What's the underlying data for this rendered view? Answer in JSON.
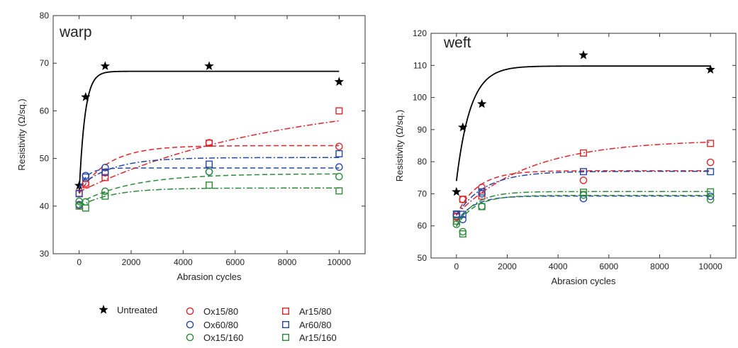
{
  "chart_data": [
    {
      "type": "scatter",
      "title": "warp",
      "xlabel": "Abrasion cycles",
      "ylabel": "Resistivity (Ω/sq.)",
      "xlim": [
        -1000,
        11000
      ],
      "ylim": [
        30,
        80
      ],
      "xticks": [
        0,
        2000,
        4000,
        6000,
        8000,
        10000
      ],
      "yticks": [
        30,
        40,
        50,
        60,
        70,
        80
      ],
      "series": [
        {
          "name": "Untreated",
          "color": "#000000",
          "marker": "star",
          "line": "solid",
          "x": [
            0,
            250,
            1000,
            5000,
            10000
          ],
          "y": [
            44.3,
            62.9,
            69.4,
            69.4,
            66.1
          ],
          "fit": {
            "a": 42.8,
            "b": 68.3,
            "k": 0.0045
          }
        },
        {
          "name": "Ox15/80",
          "color": "#e0262b",
          "marker": "circle",
          "line": "dashed",
          "x": [
            0,
            250,
            1000,
            5000,
            10000
          ],
          "y": [
            40.2,
            44.8,
            47.0,
            53.3,
            52.5
          ],
          "fit": {
            "a": 42.6,
            "b": 52.7,
            "k": 0.0009
          }
        },
        {
          "name": "Ox60/80",
          "color": "#2448a8",
          "marker": "circle",
          "line": "dashed",
          "x": [
            0,
            250,
            1000,
            5000,
            10000
          ],
          "y": [
            40.3,
            46.4,
            48.1,
            47.2,
            48.2
          ],
          "fit": {
            "a": 43.8,
            "b": 48.0,
            "k": 0.003
          }
        },
        {
          "name": "Ox15/160",
          "color": "#2d8a3a",
          "marker": "circle",
          "line": "dashed",
          "x": [
            0,
            250,
            1000,
            5000,
            10000
          ],
          "y": [
            41.0,
            40.9,
            43.1,
            47.2,
            46.2
          ],
          "fit": {
            "a": 40.6,
            "b": 46.8,
            "k": 0.0005
          }
        },
        {
          "name": "Ar15/80",
          "color": "#e0262b",
          "marker": "square",
          "line": "dashdot",
          "x": [
            0,
            250,
            1000,
            5000,
            10000
          ],
          "y": [
            42.7,
            44.5,
            46.0,
            53.2,
            60.0
          ],
          "fit": {
            "a": 43.0,
            "b": 63.5,
            "k": 0.00013
          }
        },
        {
          "name": "Ar60/80",
          "color": "#2448a8",
          "marker": "square",
          "line": "dashdot",
          "x": [
            0,
            250,
            1000,
            5000,
            10000
          ],
          "y": [
            42.6,
            46.1,
            47.1,
            48.8,
            51.0
          ],
          "fit": {
            "a": 44.0,
            "b": 50.2,
            "k": 0.0008
          }
        },
        {
          "name": "Ar15/160",
          "color": "#2d8a3a",
          "marker": "square",
          "line": "dashdot",
          "x": [
            0,
            250,
            1000,
            5000,
            10000
          ],
          "y": [
            40.0,
            39.6,
            42.1,
            44.4,
            43.2
          ],
          "fit": {
            "a": 39.9,
            "b": 43.8,
            "k": 0.0008
          }
        }
      ]
    },
    {
      "type": "scatter",
      "title": "weft",
      "xlabel": "Abrasion cycles",
      "ylabel": "Resistivity (Ω/sq.)",
      "xlim": [
        -1000,
        11000
      ],
      "ylim": [
        50,
        120
      ],
      "xticks": [
        0,
        2000,
        4000,
        6000,
        8000,
        10000
      ],
      "yticks": [
        50,
        60,
        70,
        80,
        90,
        100,
        110,
        120
      ],
      "series": [
        {
          "name": "Untreated",
          "color": "#000000",
          "marker": "star",
          "line": "solid",
          "x": [
            0,
            250,
            1000,
            5000,
            10000
          ],
          "y": [
            70.6,
            90.7,
            98.0,
            113.2,
            108.7
          ],
          "fit": {
            "a": 74.0,
            "b": 109.8,
            "k": 0.0018
          }
        },
        {
          "name": "Ox15/80",
          "color": "#e0262b",
          "marker": "circle",
          "line": "dashed",
          "x": [
            0,
            250,
            1000,
            5000,
            10000
          ],
          "y": [
            63.0,
            68.2,
            72.0,
            74.2,
            79.8
          ],
          "fit": {
            "a": 63.3,
            "b": 77.2,
            "k": 0.0012
          }
        },
        {
          "name": "Ox60/80",
          "color": "#2448a8",
          "marker": "circle",
          "line": "dashed",
          "x": [
            0,
            250,
            1000,
            5000,
            10000
          ],
          "y": [
            63.5,
            62.0,
            70.0,
            68.5,
            69.2
          ],
          "fit": {
            "a": 61.2,
            "b": 69.3,
            "k": 0.0015
          }
        },
        {
          "name": "Ox15/160",
          "color": "#2d8a3a",
          "marker": "circle",
          "line": "dashed",
          "x": [
            0,
            250,
            1000,
            5000,
            10000
          ],
          "y": [
            60.5,
            58.2,
            66.1,
            69.6,
            68.2
          ],
          "fit": {
            "a": 59.8,
            "b": 69.5,
            "k": 0.0014
          }
        },
        {
          "name": "Ar15/80",
          "color": "#e0262b",
          "marker": "square",
          "line": "dashdot",
          "x": [
            0,
            250,
            1000,
            5000,
            10000
          ],
          "y": [
            62.8,
            68.3,
            69.3,
            82.7,
            85.7
          ],
          "fit": {
            "a": 63.5,
            "b": 86.8,
            "k": 0.00035
          }
        },
        {
          "name": "Ar60/80",
          "color": "#2448a8",
          "marker": "square",
          "line": "dashdot",
          "x": [
            0,
            250,
            1000,
            5000,
            10000
          ],
          "y": [
            63.7,
            63.6,
            70.6,
            76.9,
            76.9
          ],
          "fit": {
            "a": 63.3,
            "b": 77.0,
            "k": 0.0009
          }
        },
        {
          "name": "Ar15/160",
          "color": "#2d8a3a",
          "marker": "square",
          "line": "dashdot",
          "x": [
            0,
            250,
            1000,
            5000,
            10000
          ],
          "y": [
            61.5,
            57.5,
            66.0,
            70.5,
            70.6
          ],
          "fit": {
            "a": 60.0,
            "b": 70.7,
            "k": 0.0014
          }
        }
      ]
    }
  ],
  "legend": {
    "placement": "bottom-left",
    "items": [
      {
        "label": "Untreated",
        "marker": "star",
        "color": "#000000"
      },
      {
        "label": "Ox15/80",
        "marker": "circle",
        "color": "#e0262b"
      },
      {
        "label": "Ox60/80",
        "marker": "circle",
        "color": "#2448a8"
      },
      {
        "label": "Ox15/160",
        "marker": "circle",
        "color": "#2d8a3a"
      },
      {
        "label": "Ar15/80",
        "marker": "square",
        "color": "#e0262b"
      },
      {
        "label": "Ar60/80",
        "marker": "square",
        "color": "#2448a8"
      },
      {
        "label": "Ar15/160",
        "marker": "square",
        "color": "#2d8a3a"
      }
    ]
  }
}
